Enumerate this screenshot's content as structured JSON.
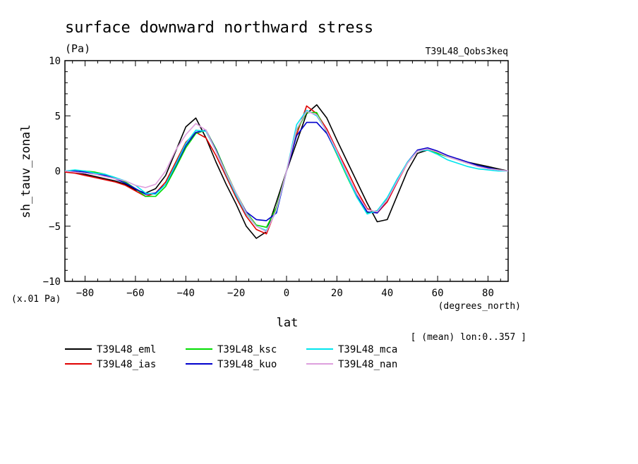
{
  "chart_data": {
    "type": "line",
    "title": "surface downward northward stress",
    "units": "(Pa)",
    "experiment": "T39L48_Qobs3keq",
    "ylabel": "sh_tauv_zonal",
    "xlabel": "lat",
    "x_units": "(degrees_north)",
    "y_scale_note": "(x.01 Pa)",
    "averaging_note": "[ (mean) lon:0..357 ]",
    "xlim": [
      -88,
      88
    ],
    "ylim": [
      -10,
      10
    ],
    "x_ticks": [
      -80,
      -60,
      -40,
      -20,
      0,
      20,
      40,
      60,
      80
    ],
    "x_tick_labels": [
      "−80",
      "−60",
      "−40",
      "−20",
      "0",
      "20",
      "40",
      "60",
      "80"
    ],
    "y_ticks": [
      -10,
      -5,
      0,
      5,
      10
    ],
    "y_tick_labels": [
      "−10",
      "−5",
      "0",
      "5",
      "10"
    ],
    "grid": false,
    "legend_position": "bottom",
    "x": [
      -88,
      -84,
      -80,
      -76,
      -72,
      -68,
      -64,
      -60,
      -56,
      -52,
      -48,
      -44,
      -40,
      -36,
      -32,
      -28,
      -24,
      -20,
      -16,
      -12,
      -8,
      -4,
      0,
      4,
      8,
      12,
      16,
      20,
      24,
      28,
      32,
      36,
      40,
      44,
      48,
      52,
      56,
      60,
      64,
      68,
      72,
      76,
      80,
      84,
      88
    ],
    "series": [
      {
        "name": "T39L48_eml",
        "color": "#000000",
        "values": [
          0,
          -0.1,
          -0.3,
          -0.5,
          -0.7,
          -0.9,
          -1.2,
          -1.7,
          -2.0,
          -1.6,
          -0.4,
          1.8,
          4.0,
          4.8,
          3.0,
          0.8,
          -1.2,
          -3.0,
          -5.0,
          -6.1,
          -5.5,
          -2.8,
          0,
          2.6,
          5.2,
          6.0,
          4.8,
          2.8,
          0.9,
          -1.0,
          -2.9,
          -4.6,
          -4.4,
          -2.2,
          0,
          1.6,
          1.9,
          1.6,
          1.3,
          1.1,
          0.8,
          0.6,
          0.4,
          0.2,
          0
        ]
      },
      {
        "name": "T39L48_ias",
        "color": "#e00000",
        "values": [
          -0.1,
          -0.2,
          -0.4,
          -0.6,
          -0.8,
          -1.0,
          -1.3,
          -1.8,
          -2.3,
          -2.0,
          -1.0,
          0.8,
          2.6,
          3.5,
          3.0,
          1.4,
          -0.5,
          -2.4,
          -4.1,
          -5.3,
          -5.7,
          -3.4,
          0,
          3.3,
          5.9,
          5.2,
          3.8,
          1.9,
          0.1,
          -1.8,
          -3.4,
          -3.8,
          -2.8,
          -1.0,
          0.7,
          1.8,
          2.0,
          1.7,
          1.3,
          1.0,
          0.7,
          0.5,
          0.3,
          0.1,
          0
        ]
      },
      {
        "name": "T39L48_ksc",
        "color": "#00dd00",
        "values": [
          0,
          0,
          0,
          -0.1,
          -0.3,
          -0.6,
          -1.0,
          -1.6,
          -2.3,
          -2.3,
          -1.4,
          0.3,
          2.1,
          3.4,
          3.7,
          2.0,
          -0.1,
          -2.0,
          -3.7,
          -4.9,
          -5.1,
          -3.3,
          0,
          3.7,
          5.3,
          5.3,
          3.5,
          1.5,
          -0.5,
          -2.4,
          -3.8,
          -3.6,
          -2.5,
          -0.8,
          0.8,
          1.8,
          1.9,
          1.6,
          1.3,
          1.0,
          0.7,
          0.5,
          0.3,
          0.1,
          0
        ]
      },
      {
        "name": "T39L48_kuo",
        "color": "#0000cc",
        "values": [
          0,
          0,
          -0.1,
          -0.2,
          -0.4,
          -0.7,
          -1.1,
          -1.6,
          -2.1,
          -2.0,
          -1.2,
          0.5,
          2.3,
          3.5,
          3.7,
          1.9,
          -0.2,
          -2.1,
          -3.7,
          -4.4,
          -4.5,
          -3.8,
          0,
          3.2,
          4.4,
          4.4,
          3.4,
          1.6,
          -0.3,
          -2.2,
          -3.7,
          -3.8,
          -2.6,
          -0.9,
          0.8,
          1.9,
          2.1,
          1.8,
          1.4,
          1.1,
          0.8,
          0.5,
          0.3,
          0.1,
          0
        ]
      },
      {
        "name": "T39L48_mca",
        "color": "#00e5ee",
        "values": [
          0,
          0.1,
          0,
          -0.2,
          -0.3,
          -0.6,
          -0.9,
          -1.3,
          -2.0,
          -2.1,
          -1.2,
          0.6,
          2.5,
          3.7,
          3.6,
          1.8,
          -0.3,
          -2.2,
          -3.9,
          -5.0,
          -5.4,
          -3.6,
          0,
          4.2,
          5.5,
          5.0,
          3.6,
          1.6,
          -0.4,
          -2.4,
          -3.9,
          -3.6,
          -2.4,
          -0.7,
          0.8,
          1.8,
          1.9,
          1.5,
          1.0,
          0.7,
          0.4,
          0.2,
          0.1,
          0,
          0
        ]
      },
      {
        "name": "T39L48_nan",
        "color": "#dd9fdd",
        "values": [
          0,
          -0.1,
          -0.2,
          -0.3,
          -0.5,
          -0.7,
          -0.9,
          -1.3,
          -1.5,
          -1.2,
          0,
          1.9,
          3.3,
          4.3,
          3.7,
          1.8,
          -0.2,
          -2.0,
          -3.8,
          -5.0,
          -5.5,
          -3.5,
          0,
          3.8,
          5.4,
          5.1,
          3.6,
          1.8,
          -0.2,
          -2.1,
          -3.5,
          -3.7,
          -2.6,
          -0.9,
          0.7,
          1.8,
          2.0,
          1.7,
          1.3,
          1.0,
          0.7,
          0.4,
          0.2,
          0.1,
          0
        ]
      }
    ]
  }
}
